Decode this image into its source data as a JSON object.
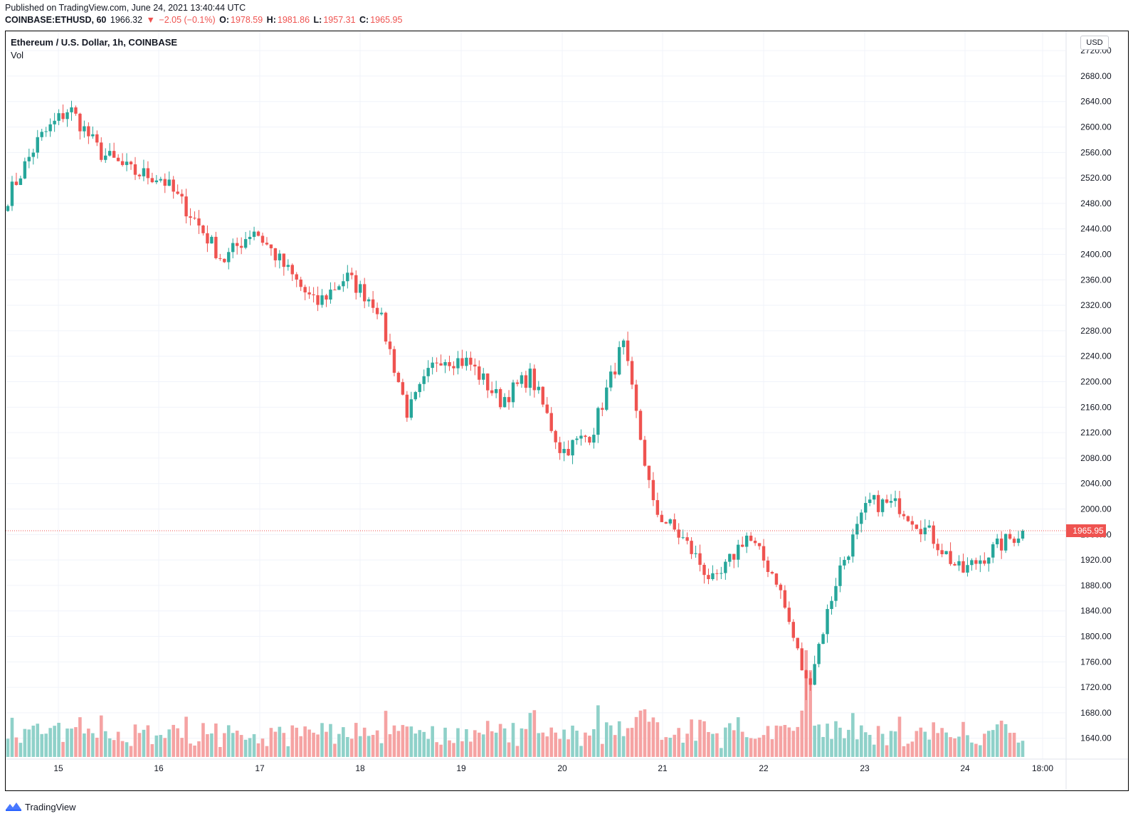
{
  "header": {
    "published": "Published on TradingView.com, June 24, 2021 13:40:44 UTC",
    "symbol": "COINBASE:ETHUSD, 60",
    "last": "1966.32",
    "change": "−2.05 (−0.1%)",
    "o_label": "O:",
    "o_value": "1978.59",
    "h_label": "H:",
    "h_value": "1981.86",
    "l_label": "L:",
    "l_value": "1957.31",
    "c_label": "C:",
    "c_value": "1965.95"
  },
  "legend": {
    "title": "Ethereum / U.S. Dollar, 1h, COINBASE",
    "vol_label": "Vol"
  },
  "currency_button": "USD",
  "footer": {
    "brand": "TradingView"
  },
  "colors": {
    "up": "#26a69a",
    "down": "#ef5350",
    "up_volume": "#8fd1c9",
    "down_volume": "#f5a3a3",
    "grid": "#f0f3fa",
    "last_price_line": "#ef5350"
  },
  "chart_data": {
    "type": "candlestick",
    "interval": "1h",
    "yaxis": {
      "min": 1600,
      "max": 2720,
      "ticks": [
        "1640.00",
        "1680.00",
        "1720.00",
        "1760.00",
        "1800.00",
        "1840.00",
        "1880.00",
        "1920.00",
        "1960.00",
        "2000.00",
        "2040.00",
        "2080.00",
        "2120.00",
        "2160.00",
        "2200.00",
        "2240.00",
        "2280.00",
        "2320.00",
        "2360.00",
        "2400.00",
        "2440.00",
        "2480.00",
        "2520.00",
        "2560.00",
        "2600.00",
        "2640.00",
        "2680.00",
        "2720.00"
      ]
    },
    "xaxis": {
      "ticks": [
        "15",
        "16",
        "17",
        "18",
        "19",
        "20",
        "21",
        "22",
        "23",
        "24",
        "18:00"
      ]
    },
    "last_price_label": "1965.95",
    "anchors": [
      {
        "day": "14",
        "close": 2490
      },
      {
        "day": "15",
        "close": 2580
      },
      {
        "day": "15",
        "close": 2630
      },
      {
        "day": "16",
        "close": 2560
      },
      {
        "day": "16",
        "close": 2530
      },
      {
        "day": "16",
        "close": 2520
      },
      {
        "day": "17",
        "close": 2460
      },
      {
        "day": "17",
        "close": 2390
      },
      {
        "day": "17",
        "close": 2440
      },
      {
        "day": "18",
        "close": 2380
      },
      {
        "day": "18",
        "close": 2320
      },
      {
        "day": "18",
        "close": 2365
      },
      {
        "day": "18",
        "close": 2320
      },
      {
        "day": "19",
        "close": 2150
      },
      {
        "day": "19",
        "close": 2240
      },
      {
        "day": "20",
        "close": 2230
      },
      {
        "day": "20",
        "close": 2170
      },
      {
        "day": "20",
        "close": 2210
      },
      {
        "day": "20",
        "close": 2090
      },
      {
        "day": "21",
        "close": 2120
      },
      {
        "day": "21",
        "close": 2260
      },
      {
        "day": "21",
        "close": 2000
      },
      {
        "day": "22",
        "close": 1950
      },
      {
        "day": "22",
        "close": 1880
      },
      {
        "day": "22",
        "close": 1960
      },
      {
        "day": "22",
        "close": 1890
      },
      {
        "day": "22",
        "close": 1720
      },
      {
        "day": "23",
        "close": 1900
      },
      {
        "day": "23",
        "close": 2010
      },
      {
        "day": "23",
        "close": 2005
      },
      {
        "day": "23",
        "close": 1960
      },
      {
        "day": "24",
        "close": 1900
      },
      {
        "day": "24",
        "close": 1935
      },
      {
        "day": "24",
        "close": 1966
      }
    ]
  }
}
